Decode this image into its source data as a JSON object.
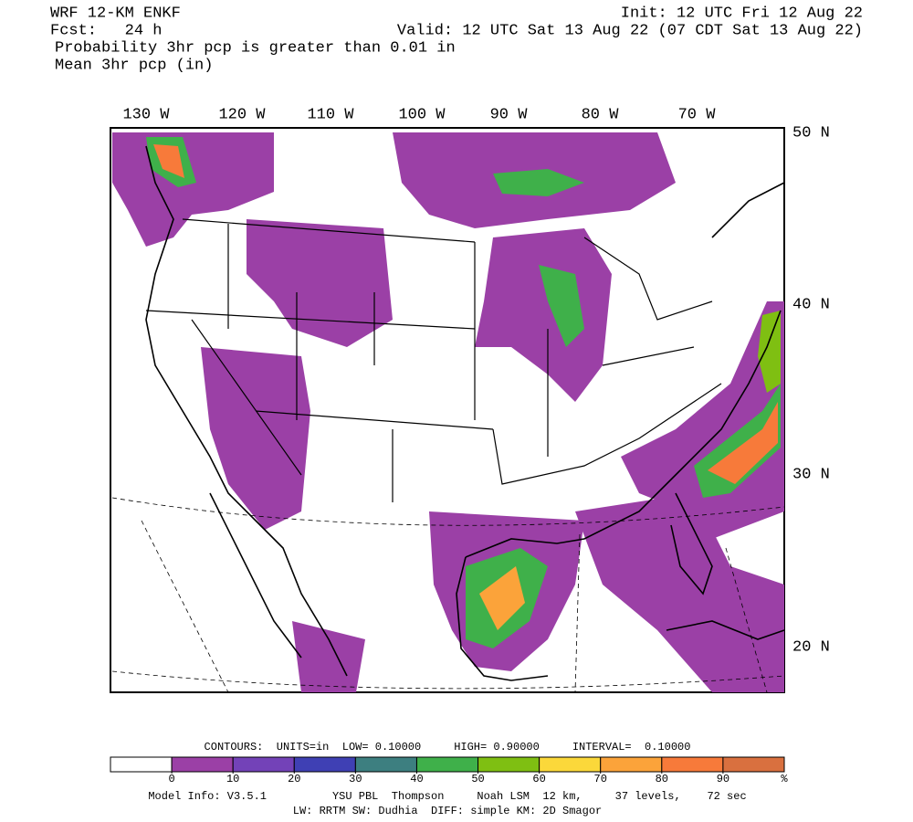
{
  "header": {
    "model": "WRF 12-KM ENKF",
    "init": "Init: 12 UTC Fri 12 Aug 22",
    "fcst": "Fcst:   24 h",
    "valid": "Valid: 12 UTC Sat 13 Aug 22 (07 CDT Sat 13 Aug 22)",
    "field1": "Probability 3hr pcp is greater than 0.01 in",
    "field2": "Mean 3hr pcp (in)"
  },
  "map": {
    "lon_labels": [
      "130 W",
      "120 W",
      "110 W",
      "100 W",
      "90 W",
      "80 W",
      "70 W"
    ],
    "lat_labels": [
      "50 N",
      "40 N",
      "30 N",
      "20 N"
    ]
  },
  "legend": {
    "contours": "CONTOURS:  UNITS=in  LOW= 0.10000     HIGH= 0.90000     INTERVAL=  0.10000",
    "colors": [
      "#ffffff",
      "#9b40a6",
      "#7342b8",
      "#3f40b4",
      "#3d7f80",
      "#3fb04a",
      "#7fbf12",
      "#fbd83a",
      "#fba33a",
      "#f77a3a",
      "#d9703f"
    ],
    "ticks": [
      0,
      10,
      20,
      30,
      40,
      50,
      60,
      70,
      80,
      90
    ],
    "unit": "%"
  },
  "footer": {
    "line1": "Model Info: V3.5.1          YSU PBL  Thompson     Noah LSM  12 km,     37 levels,    72 sec",
    "line2": "LW: RRTM SW: Dudhia  DIFF: simple KM: 2D Smagor"
  }
}
